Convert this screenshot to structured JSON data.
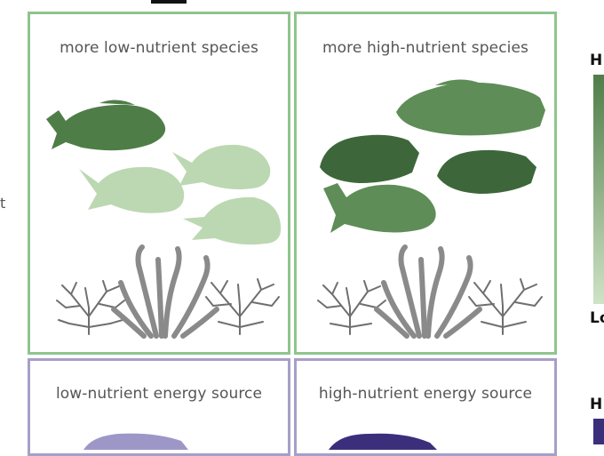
{
  "panels": {
    "top_left": {
      "title": "more low-nutrient species"
    },
    "top_right": {
      "title": "more high-nutrient species"
    },
    "bottom_left": {
      "title": "low-nutrient energy source"
    },
    "bottom_right": {
      "title": "high-nutrient energy source"
    }
  },
  "legend": {
    "green_high": "H",
    "green_low": "Lo",
    "purple_high": "H"
  },
  "stray_text": "t",
  "colors": {
    "green_border": "#8ec58e",
    "purple_border": "#a79fc9",
    "fish_dark_green": "#3f6b3d",
    "fish_mid_green": "#5c8a56",
    "fish_light_green": "#bcd8b2",
    "coral_gray": "#7a7a7a",
    "fish_light_purple": "#9d97c7",
    "fish_dark_purple": "#3b2f7c"
  }
}
